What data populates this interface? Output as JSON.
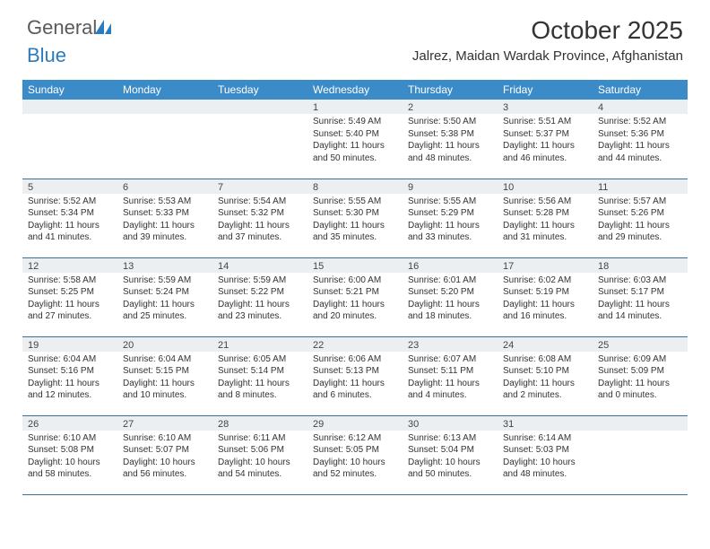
{
  "brand": {
    "general": "General",
    "blue": "Blue"
  },
  "colors": {
    "header_bg": "#3b8bc8",
    "header_text": "#ffffff",
    "daynum_bg": "#eceff1",
    "border": "#3b6fa0",
    "logo_gray": "#5a5a5a",
    "logo_blue": "#2b7bbf",
    "body_text": "#333333",
    "background": "#ffffff"
  },
  "typography": {
    "title_fontsize": 28,
    "location_fontsize": 15,
    "dayheader_fontsize": 12,
    "daynum_fontsize": 11,
    "cell_fontsize": 10
  },
  "title": "October 2025",
  "location": "Jalrez, Maidan Wardak Province, Afghanistan",
  "day_headers": [
    "Sunday",
    "Monday",
    "Tuesday",
    "Wednesday",
    "Thursday",
    "Friday",
    "Saturday"
  ],
  "weeks": [
    [
      {
        "day": "",
        "l1": "",
        "l2": "",
        "l3": "",
        "l4": ""
      },
      {
        "day": "",
        "l1": "",
        "l2": "",
        "l3": "",
        "l4": ""
      },
      {
        "day": "",
        "l1": "",
        "l2": "",
        "l3": "",
        "l4": ""
      },
      {
        "day": "1",
        "l1": "Sunrise: 5:49 AM",
        "l2": "Sunset: 5:40 PM",
        "l3": "Daylight: 11 hours",
        "l4": "and 50 minutes."
      },
      {
        "day": "2",
        "l1": "Sunrise: 5:50 AM",
        "l2": "Sunset: 5:38 PM",
        "l3": "Daylight: 11 hours",
        "l4": "and 48 minutes."
      },
      {
        "day": "3",
        "l1": "Sunrise: 5:51 AM",
        "l2": "Sunset: 5:37 PM",
        "l3": "Daylight: 11 hours",
        "l4": "and 46 minutes."
      },
      {
        "day": "4",
        "l1": "Sunrise: 5:52 AM",
        "l2": "Sunset: 5:36 PM",
        "l3": "Daylight: 11 hours",
        "l4": "and 44 minutes."
      }
    ],
    [
      {
        "day": "5",
        "l1": "Sunrise: 5:52 AM",
        "l2": "Sunset: 5:34 PM",
        "l3": "Daylight: 11 hours",
        "l4": "and 41 minutes."
      },
      {
        "day": "6",
        "l1": "Sunrise: 5:53 AM",
        "l2": "Sunset: 5:33 PM",
        "l3": "Daylight: 11 hours",
        "l4": "and 39 minutes."
      },
      {
        "day": "7",
        "l1": "Sunrise: 5:54 AM",
        "l2": "Sunset: 5:32 PM",
        "l3": "Daylight: 11 hours",
        "l4": "and 37 minutes."
      },
      {
        "day": "8",
        "l1": "Sunrise: 5:55 AM",
        "l2": "Sunset: 5:30 PM",
        "l3": "Daylight: 11 hours",
        "l4": "and 35 minutes."
      },
      {
        "day": "9",
        "l1": "Sunrise: 5:55 AM",
        "l2": "Sunset: 5:29 PM",
        "l3": "Daylight: 11 hours",
        "l4": "and 33 minutes."
      },
      {
        "day": "10",
        "l1": "Sunrise: 5:56 AM",
        "l2": "Sunset: 5:28 PM",
        "l3": "Daylight: 11 hours",
        "l4": "and 31 minutes."
      },
      {
        "day": "11",
        "l1": "Sunrise: 5:57 AM",
        "l2": "Sunset: 5:26 PM",
        "l3": "Daylight: 11 hours",
        "l4": "and 29 minutes."
      }
    ],
    [
      {
        "day": "12",
        "l1": "Sunrise: 5:58 AM",
        "l2": "Sunset: 5:25 PM",
        "l3": "Daylight: 11 hours",
        "l4": "and 27 minutes."
      },
      {
        "day": "13",
        "l1": "Sunrise: 5:59 AM",
        "l2": "Sunset: 5:24 PM",
        "l3": "Daylight: 11 hours",
        "l4": "and 25 minutes."
      },
      {
        "day": "14",
        "l1": "Sunrise: 5:59 AM",
        "l2": "Sunset: 5:22 PM",
        "l3": "Daylight: 11 hours",
        "l4": "and 23 minutes."
      },
      {
        "day": "15",
        "l1": "Sunrise: 6:00 AM",
        "l2": "Sunset: 5:21 PM",
        "l3": "Daylight: 11 hours",
        "l4": "and 20 minutes."
      },
      {
        "day": "16",
        "l1": "Sunrise: 6:01 AM",
        "l2": "Sunset: 5:20 PM",
        "l3": "Daylight: 11 hours",
        "l4": "and 18 minutes."
      },
      {
        "day": "17",
        "l1": "Sunrise: 6:02 AM",
        "l2": "Sunset: 5:19 PM",
        "l3": "Daylight: 11 hours",
        "l4": "and 16 minutes."
      },
      {
        "day": "18",
        "l1": "Sunrise: 6:03 AM",
        "l2": "Sunset: 5:17 PM",
        "l3": "Daylight: 11 hours",
        "l4": "and 14 minutes."
      }
    ],
    [
      {
        "day": "19",
        "l1": "Sunrise: 6:04 AM",
        "l2": "Sunset: 5:16 PM",
        "l3": "Daylight: 11 hours",
        "l4": "and 12 minutes."
      },
      {
        "day": "20",
        "l1": "Sunrise: 6:04 AM",
        "l2": "Sunset: 5:15 PM",
        "l3": "Daylight: 11 hours",
        "l4": "and 10 minutes."
      },
      {
        "day": "21",
        "l1": "Sunrise: 6:05 AM",
        "l2": "Sunset: 5:14 PM",
        "l3": "Daylight: 11 hours",
        "l4": "and 8 minutes."
      },
      {
        "day": "22",
        "l1": "Sunrise: 6:06 AM",
        "l2": "Sunset: 5:13 PM",
        "l3": "Daylight: 11 hours",
        "l4": "and 6 minutes."
      },
      {
        "day": "23",
        "l1": "Sunrise: 6:07 AM",
        "l2": "Sunset: 5:11 PM",
        "l3": "Daylight: 11 hours",
        "l4": "and 4 minutes."
      },
      {
        "day": "24",
        "l1": "Sunrise: 6:08 AM",
        "l2": "Sunset: 5:10 PM",
        "l3": "Daylight: 11 hours",
        "l4": "and 2 minutes."
      },
      {
        "day": "25",
        "l1": "Sunrise: 6:09 AM",
        "l2": "Sunset: 5:09 PM",
        "l3": "Daylight: 11 hours",
        "l4": "and 0 minutes."
      }
    ],
    [
      {
        "day": "26",
        "l1": "Sunrise: 6:10 AM",
        "l2": "Sunset: 5:08 PM",
        "l3": "Daylight: 10 hours",
        "l4": "and 58 minutes."
      },
      {
        "day": "27",
        "l1": "Sunrise: 6:10 AM",
        "l2": "Sunset: 5:07 PM",
        "l3": "Daylight: 10 hours",
        "l4": "and 56 minutes."
      },
      {
        "day": "28",
        "l1": "Sunrise: 6:11 AM",
        "l2": "Sunset: 5:06 PM",
        "l3": "Daylight: 10 hours",
        "l4": "and 54 minutes."
      },
      {
        "day": "29",
        "l1": "Sunrise: 6:12 AM",
        "l2": "Sunset: 5:05 PM",
        "l3": "Daylight: 10 hours",
        "l4": "and 52 minutes."
      },
      {
        "day": "30",
        "l1": "Sunrise: 6:13 AM",
        "l2": "Sunset: 5:04 PM",
        "l3": "Daylight: 10 hours",
        "l4": "and 50 minutes."
      },
      {
        "day": "31",
        "l1": "Sunrise: 6:14 AM",
        "l2": "Sunset: 5:03 PM",
        "l3": "Daylight: 10 hours",
        "l4": "and 48 minutes."
      },
      {
        "day": "",
        "l1": "",
        "l2": "",
        "l3": "",
        "l4": ""
      }
    ]
  ]
}
